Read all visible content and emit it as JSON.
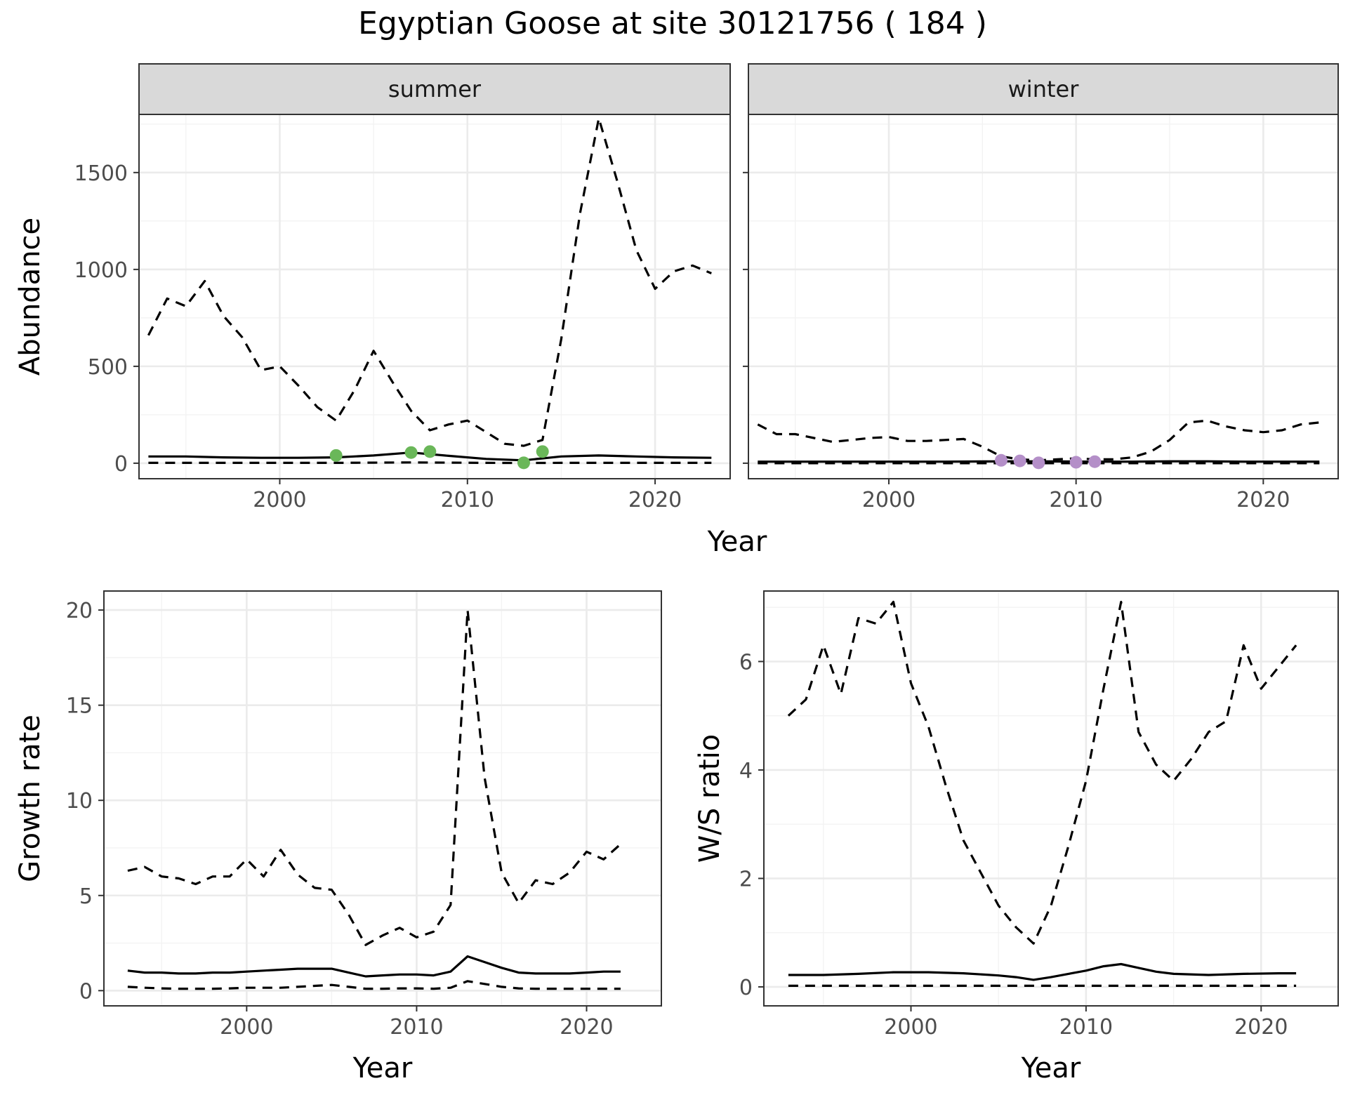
{
  "title": "Egyptian Goose at site 30121756 ( 184 )",
  "chart_data": [
    {
      "id": "summer",
      "type": "line",
      "facet_label": "summer",
      "xlabel": "",
      "ylabel": "Abundance",
      "xlim": [
        1992.5,
        2024
      ],
      "ylim": [
        -80,
        1800
      ],
      "xticks": [
        2000,
        2010,
        2020
      ],
      "yticks": [
        0,
        500,
        1000,
        1500
      ],
      "grid": true,
      "series": [
        {
          "style": "dashed",
          "x": [
            1993,
            1994,
            1995,
            1996,
            1997,
            1998,
            1999,
            2000,
            2001,
            2002,
            2003,
            2004,
            2005,
            2006,
            2007,
            2008,
            2009,
            2010,
            2011,
            2012,
            2013,
            2014,
            2015,
            2016,
            2017,
            2018,
            2019,
            2020,
            2021,
            2022,
            2023
          ],
          "y": [
            660,
            850,
            810,
            940,
            760,
            650,
            480,
            500,
            400,
            290,
            220,
            380,
            580,
            420,
            270,
            170,
            200,
            220,
            160,
            100,
            90,
            120,
            640,
            1290,
            1780,
            1450,
            1100,
            900,
            990,
            1020,
            980
          ]
        },
        {
          "style": "solid",
          "x": [
            1993,
            1995,
            1997,
            1999,
            2001,
            2003,
            2005,
            2007,
            2009,
            2011,
            2013,
            2015,
            2017,
            2019,
            2021,
            2023
          ],
          "y": [
            35,
            35,
            30,
            28,
            28,
            30,
            40,
            55,
            38,
            22,
            15,
            35,
            40,
            35,
            30,
            28
          ]
        },
        {
          "style": "dashed",
          "x": [
            1993,
            1995,
            1997,
            1999,
            2001,
            2003,
            2005,
            2007,
            2009,
            2011,
            2013,
            2015,
            2017,
            2019,
            2021,
            2023
          ],
          "y": [
            2,
            2,
            2,
            2,
            2,
            2,
            3,
            4,
            3,
            2,
            1,
            2,
            2,
            2,
            2,
            2
          ]
        }
      ],
      "points": {
        "color": "#6ab759",
        "x": [
          2003,
          2007,
          2008,
          2013,
          2014
        ],
        "y": [
          40,
          55,
          60,
          2,
          60
        ]
      }
    },
    {
      "id": "winter",
      "type": "line",
      "facet_label": "winter",
      "xlabel": "",
      "ylabel": "",
      "xlim": [
        1992.5,
        2024
      ],
      "ylim": [
        -80,
        1800
      ],
      "xticks": [
        2000,
        2010,
        2020
      ],
      "yticks": [
        0,
        500,
        1000,
        1500
      ],
      "grid": true,
      "series": [
        {
          "style": "dashed",
          "x": [
            1993,
            1994,
            1995,
            1996,
            1997,
            1998,
            1999,
            2000,
            2001,
            2002,
            2003,
            2004,
            2005,
            2006,
            2007,
            2008,
            2009,
            2010,
            2011,
            2012,
            2013,
            2014,
            2015,
            2016,
            2017,
            2018,
            2019,
            2020,
            2021,
            2022,
            2023
          ],
          "y": [
            200,
            150,
            150,
            130,
            110,
            120,
            130,
            135,
            115,
            115,
            120,
            125,
            85,
            35,
            20,
            15,
            20,
            25,
            20,
            20,
            30,
            60,
            120,
            210,
            220,
            190,
            170,
            160,
            170,
            200,
            210
          ]
        },
        {
          "style": "solid",
          "x": [
            1993,
            1995,
            1997,
            1999,
            2001,
            2003,
            2005,
            2007,
            2009,
            2011,
            2013,
            2015,
            2017,
            2019,
            2021,
            2023
          ],
          "y": [
            8,
            8,
            8,
            8,
            8,
            8,
            9,
            10,
            9,
            8,
            8,
            10,
            10,
            8,
            8,
            8
          ]
        },
        {
          "style": "dashed",
          "x": [
            1993,
            1995,
            1997,
            1999,
            2001,
            2003,
            2005,
            2007,
            2009,
            2011,
            2013,
            2015,
            2017,
            2019,
            2021,
            2023
          ],
          "y": [
            0,
            0,
            0,
            0,
            0,
            0,
            0,
            0,
            0,
            0,
            0,
            0,
            0,
            0,
            0,
            0
          ]
        }
      ],
      "points": {
        "color": "#b48fc8",
        "x": [
          2006,
          2007,
          2008,
          2010,
          2011
        ],
        "y": [
          15,
          12,
          2,
          5,
          8
        ]
      }
    },
    {
      "id": "growth",
      "type": "line",
      "xlabel": "Year",
      "ylabel": "Growth rate",
      "xlim": [
        1991.6,
        2024.4
      ],
      "ylim": [
        -0.8,
        21
      ],
      "xticks": [
        2000,
        2010,
        2020
      ],
      "yticks": [
        0,
        5,
        10,
        15,
        20
      ],
      "grid": true,
      "series": [
        {
          "style": "dashed",
          "x": [
            1993,
            1994,
            1995,
            1996,
            1997,
            1998,
            1999,
            2000,
            2001,
            2002,
            2003,
            2004,
            2005,
            2006,
            2007,
            2008,
            2009,
            2010,
            2011,
            2012,
            2013,
            2014,
            2015,
            2016,
            2017,
            2018,
            2019,
            2020,
            2021,
            2022
          ],
          "y": [
            6.3,
            6.5,
            6.0,
            5.9,
            5.6,
            6.0,
            6.0,
            6.9,
            6.0,
            7.4,
            6.1,
            5.4,
            5.3,
            4.0,
            2.4,
            2.9,
            3.3,
            2.8,
            3.1,
            4.5,
            20.0,
            11.2,
            6.2,
            4.6,
            5.8,
            5.6,
            6.2,
            7.3,
            6.9,
            7.7
          ]
        },
        {
          "style": "solid",
          "x": [
            1993,
            1994,
            1995,
            1996,
            1997,
            1998,
            1999,
            2000,
            2001,
            2002,
            2003,
            2004,
            2005,
            2006,
            2007,
            2008,
            2009,
            2010,
            2011,
            2012,
            2013,
            2014,
            2015,
            2016,
            2017,
            2018,
            2019,
            2020,
            2021,
            2022
          ],
          "y": [
            1.05,
            0.95,
            0.95,
            0.9,
            0.9,
            0.95,
            0.95,
            1.0,
            1.05,
            1.1,
            1.15,
            1.15,
            1.15,
            0.95,
            0.75,
            0.8,
            0.85,
            0.85,
            0.8,
            1.0,
            1.8,
            1.5,
            1.2,
            0.95,
            0.9,
            0.9,
            0.9,
            0.95,
            1.0,
            1.0
          ]
        },
        {
          "style": "dashed",
          "x": [
            1993,
            1994,
            1995,
            1996,
            1997,
            1998,
            1999,
            2000,
            2001,
            2002,
            2003,
            2004,
            2005,
            2006,
            2007,
            2008,
            2009,
            2010,
            2011,
            2012,
            2013,
            2014,
            2015,
            2016,
            2017,
            2018,
            2019,
            2020,
            2021,
            2022
          ],
          "y": [
            0.2,
            0.15,
            0.12,
            0.1,
            0.1,
            0.1,
            0.12,
            0.15,
            0.15,
            0.15,
            0.2,
            0.25,
            0.3,
            0.2,
            0.1,
            0.1,
            0.12,
            0.12,
            0.1,
            0.15,
            0.5,
            0.35,
            0.2,
            0.12,
            0.1,
            0.1,
            0.1,
            0.1,
            0.1,
            0.1
          ]
        }
      ]
    },
    {
      "id": "ratio",
      "type": "line",
      "xlabel": "Year",
      "ylabel": "W/S ratio",
      "xlim": [
        1991.6,
        2024.4
      ],
      "ylim": [
        -0.35,
        7.3
      ],
      "xticks": [
        2000,
        2010,
        2020
      ],
      "yticks": [
        0,
        2,
        4,
        6
      ],
      "grid": true,
      "series": [
        {
          "style": "dashed",
          "x": [
            1993,
            1994,
            1995,
            1996,
            1997,
            1998,
            1999,
            2000,
            2001,
            2002,
            2003,
            2004,
            2005,
            2006,
            2007,
            2008,
            2009,
            2010,
            2011,
            2012,
            2013,
            2014,
            2015,
            2016,
            2017,
            2018,
            2019,
            2020,
            2021,
            2022
          ],
          "y": [
            5.0,
            5.3,
            6.3,
            5.4,
            6.8,
            6.7,
            7.1,
            5.6,
            4.8,
            3.7,
            2.7,
            2.1,
            1.5,
            1.1,
            0.8,
            1.5,
            2.6,
            3.8,
            5.5,
            7.1,
            4.7,
            4.1,
            3.8,
            4.2,
            4.7,
            4.9,
            6.3,
            5.5,
            5.9,
            6.3
          ]
        },
        {
          "style": "solid",
          "x": [
            1993,
            1995,
            1997,
            1999,
            2001,
            2003,
            2005,
            2006,
            2007,
            2008,
            2009,
            2010,
            2011,
            2012,
            2013,
            2014,
            2015,
            2017,
            2019,
            2021,
            2022
          ],
          "y": [
            0.22,
            0.22,
            0.24,
            0.27,
            0.27,
            0.25,
            0.21,
            0.18,
            0.13,
            0.18,
            0.24,
            0.3,
            0.38,
            0.42,
            0.35,
            0.28,
            0.24,
            0.22,
            0.24,
            0.25,
            0.25
          ]
        },
        {
          "style": "dashed",
          "x": [
            1993,
            1995,
            1997,
            1999,
            2001,
            2003,
            2005,
            2007,
            2009,
            2011,
            2013,
            2015,
            2017,
            2019,
            2021,
            2022
          ],
          "y": [
            0.02,
            0.02,
            0.02,
            0.02,
            0.02,
            0.02,
            0.02,
            0.02,
            0.02,
            0.02,
            0.02,
            0.02,
            0.02,
            0.02,
            0.02,
            0.02
          ]
        }
      ]
    }
  ],
  "shared_xlabel_top": "Year"
}
